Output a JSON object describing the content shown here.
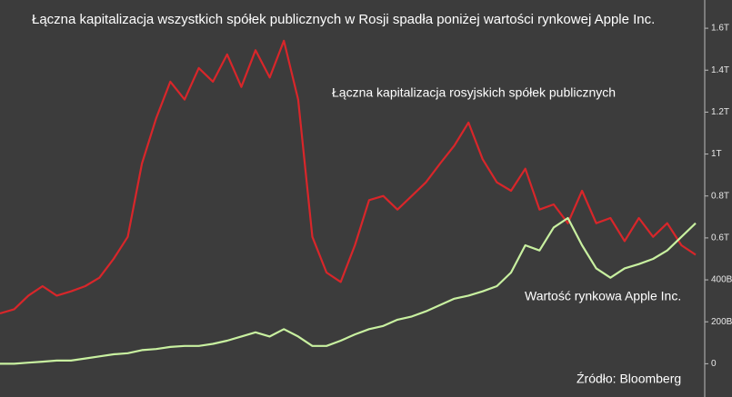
{
  "chart_data": {
    "type": "line",
    "title": "Łączna kapitalizacja wszystkich spółek publicznych w Rosji spadła poniżej wartości rynkowej Apple Inc.",
    "source": "Źródło: Bloomberg",
    "categories": [
      null,
      null,
      null,
      null,
      null,
      null,
      null,
      null,
      null,
      null,
      null,
      null,
      null,
      null,
      null,
      null,
      null,
      null,
      null,
      null,
      null,
      null,
      null,
      null,
      null,
      null,
      null,
      null,
      null,
      null,
      null,
      null,
      null,
      null,
      null,
      null,
      null,
      null,
      null,
      null,
      null,
      null,
      null,
      null,
      null,
      null,
      null,
      null,
      null,
      null
    ],
    "series": [
      {
        "name": "Łączna kapitalizacja rosyjskich spółek publicznych",
        "color": "#d8262a",
        "values": [
          240,
          260,
          325,
          370,
          325,
          345,
          370,
          410,
          500,
          605,
          955,
          1170,
          1345,
          1260,
          1410,
          1345,
          1475,
          1320,
          1495,
          1365,
          1540,
          1260,
          605,
          435,
          390,
          565,
          780,
          800,
          735,
          800,
          865,
          955,
          1040,
          1150,
          975,
          865,
          825,
          930,
          735,
          760,
          670,
          825,
          670,
          695,
          585,
          695,
          605,
          670,
          565,
          520
        ]
      },
      {
        "name": "Wartość rynkowa Apple Inc.",
        "color": "#c8f0a0",
        "values": [
          0,
          0,
          5,
          10,
          15,
          15,
          25,
          35,
          45,
          50,
          65,
          70,
          80,
          85,
          85,
          95,
          110,
          130,
          150,
          130,
          165,
          130,
          85,
          85,
          110,
          140,
          165,
          180,
          210,
          225,
          250,
          280,
          310,
          325,
          345,
          370,
          435,
          565,
          540,
          650,
          695,
          565,
          455,
          410,
          455,
          475,
          500,
          540,
          605,
          670
        ]
      }
    ],
    "ylim": [
      -150,
      1700
    ],
    "yticks": [
      0,
      {
        "value": 200,
        "label": "200B"
      },
      {
        "value": 400,
        "label": "400B"
      },
      {
        "value": 600,
        "label": "0.6T"
      },
      {
        "value": 800,
        "label": "0.8T"
      },
      {
        "value": 1000,
        "label": "1T"
      },
      {
        "value": 1200,
        "label": "1.2T"
      },
      {
        "value": 1400,
        "label": "1.4T"
      },
      {
        "value": 1600,
        "label": "1.6T"
      }
    ],
    "grid": false
  }
}
